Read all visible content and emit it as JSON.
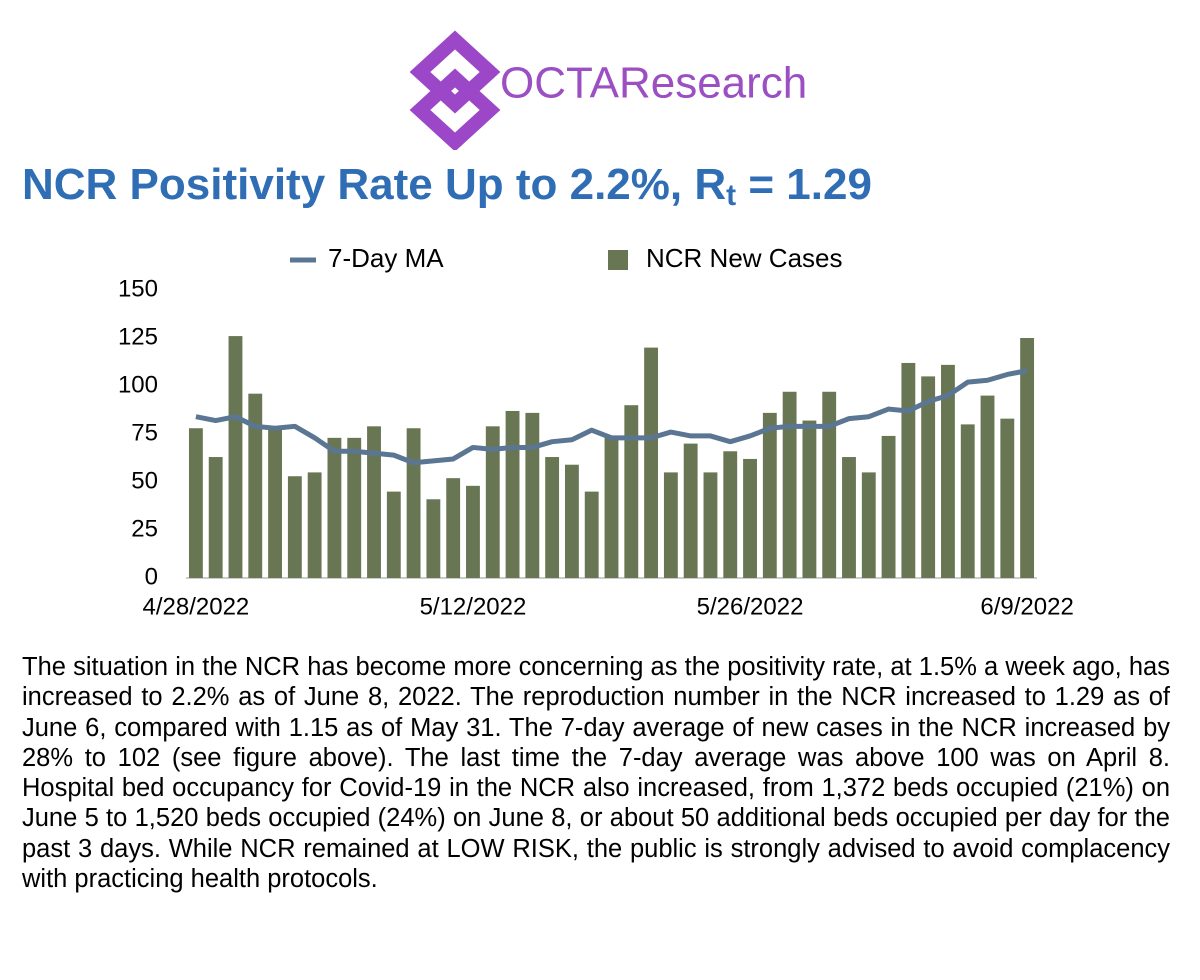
{
  "logo": {
    "text": "OCTAResearch"
  },
  "title": {
    "main": "NCR Positivity Rate Up to 2.2%, R",
    "subscript": "t",
    "end": " = 1.29"
  },
  "chart_data": {
    "type": "bar",
    "categories": [
      "4/28/2022",
      null,
      null,
      null,
      null,
      null,
      null,
      null,
      null,
      null,
      null,
      null,
      null,
      null,
      "5/12/2022",
      null,
      null,
      null,
      null,
      null,
      null,
      null,
      null,
      null,
      null,
      null,
      null,
      null,
      "5/26/2022",
      null,
      null,
      null,
      null,
      null,
      null,
      null,
      null,
      null,
      null,
      null,
      null,
      null,
      "6/9/2022"
    ],
    "series": [
      {
        "name": "7-Day MA",
        "type": "line",
        "color": "#5b7693",
        "values": [
          84,
          82,
          84,
          79,
          78,
          79,
          73,
          66,
          66,
          65,
          64,
          60,
          61,
          62,
          68,
          67,
          68,
          68,
          71,
          72,
          77,
          73,
          73,
          73,
          76,
          74,
          74,
          71,
          74,
          78,
          79,
          79,
          79,
          83,
          84,
          88,
          87,
          92,
          95,
          102,
          103,
          106,
          108
        ]
      },
      {
        "name": "NCR New Cases",
        "type": "bar",
        "color": "#687654",
        "values": [
          78,
          63,
          126,
          96,
          78,
          53,
          55,
          73,
          73,
          79,
          45,
          78,
          41,
          52,
          48,
          79,
          87,
          86,
          63,
          59,
          45,
          74,
          90,
          120,
          55,
          70,
          55,
          66,
          62,
          86,
          97,
          82,
          97,
          63,
          55,
          74,
          112,
          105,
          111,
          80,
          95,
          83,
          125
        ]
      }
    ],
    "ylim": [
      0,
      150
    ],
    "yticks": [
      0,
      25,
      50,
      75,
      100,
      125,
      150
    ],
    "grid": false,
    "legend": "top"
  },
  "document": {
    "text": "The situation in the NCR has become more concerning as the positivity rate, at 1.5% a week ago, has increased to 2.2% as of June 8, 2022. The reproduction number in the NCR increased to 1.29 as of June 6, compared with 1.15 as of May 31. The 7-day average of new cases in the NCR increased by 28% to 102 (see figure above). The last time the 7-day average was above 100 was on April 8. Hospital bed occupancy for Covid-19 in the NCR also increased, from 1,372 beds occupied (21%) on June 5 to 1,520 beds occupied (24%) on June 8, or about 50 additional beds occupied per day for the past 3 days. While NCR remained at LOW RISK, the public is strongly advised to avoid complacency with practicing health protocols."
  }
}
